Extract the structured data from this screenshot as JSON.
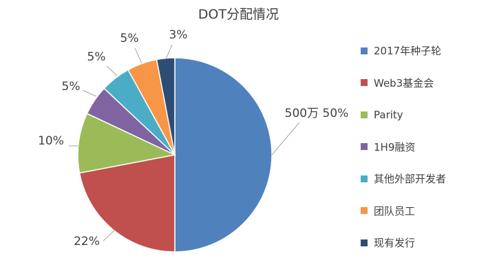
{
  "chart_data": {
    "type": "pie",
    "title": "DOT分配情况",
    "legend_position": "right",
    "slices": [
      {
        "name": "2017年种子轮",
        "value": 50,
        "label": "500万 50%",
        "color": "#4F81BD"
      },
      {
        "name": "Web3基金会",
        "value": 22,
        "label": "22%",
        "color": "#C0504D"
      },
      {
        "name": "Parity",
        "value": 10,
        "label": "10%",
        "color": "#9BBB59"
      },
      {
        "name": "1H9融资",
        "value": 5,
        "label": "5%",
        "color": "#8064A2"
      },
      {
        "name": "其他外部开发者",
        "value": 5,
        "label": "5%",
        "color": "#4BACC6"
      },
      {
        "name": "团队员工",
        "value": 5,
        "label": "5%",
        "color": "#F79646"
      },
      {
        "name": "现有发行",
        "value": 3,
        "label": "3%",
        "color": "#2C4D75"
      }
    ]
  }
}
